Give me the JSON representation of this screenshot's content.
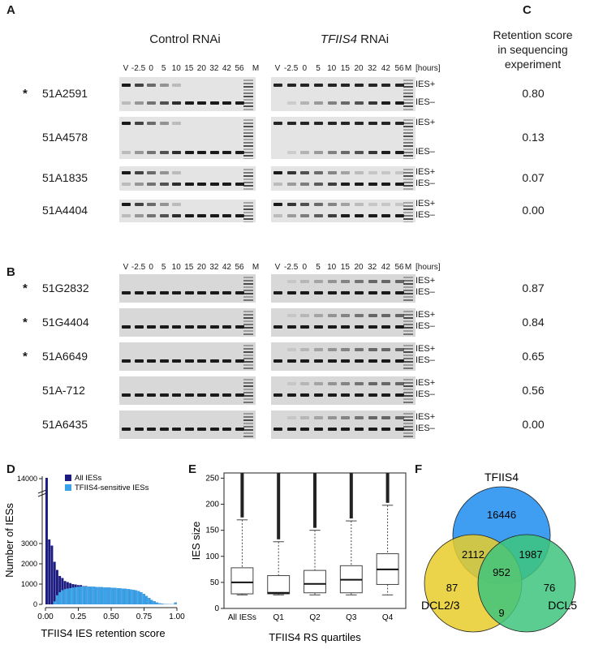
{
  "panels": {
    "A": "A",
    "B": "B",
    "C": "C",
    "D": "D",
    "E": "E",
    "F": "F"
  },
  "col_titles": {
    "control": "Control RNAi",
    "tfiis4_italic": "TFIIS4",
    "tfiis4_suffix": " RNAi"
  },
  "retention_title": [
    "Retention score",
    "in sequencing",
    "experiment"
  ],
  "lanes": [
    "V",
    "-2.5",
    "0",
    "5",
    "10",
    "15",
    "20",
    "32",
    "42",
    "56"
  ],
  "marker_label": "M",
  "hours_label": "[hours]",
  "ies_plus": "IES+",
  "ies_minus": "IES–",
  "panel_a_rows": [
    {
      "name": "51A2591",
      "star": "*",
      "score": "0.80"
    },
    {
      "name": "51A4578",
      "star": "",
      "score": "0.13"
    },
    {
      "name": "51A1835",
      "star": "",
      "score": "0.07"
    },
    {
      "name": "51A4404",
      "star": "",
      "score": "0.00"
    }
  ],
  "panel_b_rows": [
    {
      "name": "51G2832",
      "star": "*",
      "score": "0.87"
    },
    {
      "name": "51G4404",
      "star": "*",
      "score": "0.84"
    },
    {
      "name": "51A6649",
      "star": "*",
      "score": "0.65"
    },
    {
      "name": "51A-712",
      "star": "",
      "score": "0.56"
    },
    {
      "name": "51A6435",
      "star": "",
      "score": "0.00"
    }
  ],
  "chart_data": [
    {
      "type": "bar",
      "panel": "D",
      "title": "",
      "xlabel": "TFIIS4 IES retention score",
      "ylabel": "Number of IESs",
      "xlim": [
        0,
        1
      ],
      "x_ticks": [
        "0.00",
        "0.25",
        "0.50",
        "0.75",
        "1.00"
      ],
      "y_ticks_lower": [
        "0",
        "1000",
        "2000",
        "3000"
      ],
      "y_ticks_upper": [
        "14000"
      ],
      "legend": "top-right",
      "x": [
        0.01,
        0.03,
        0.05,
        0.07,
        0.09,
        0.11,
        0.13,
        0.15,
        0.17,
        0.19,
        0.21,
        0.23,
        0.25,
        0.27,
        0.29,
        0.31,
        0.33,
        0.35,
        0.37,
        0.39,
        0.41,
        0.43,
        0.45,
        0.47,
        0.49,
        0.51,
        0.53,
        0.55,
        0.57,
        0.59,
        0.61,
        0.63,
        0.65,
        0.67,
        0.69,
        0.71,
        0.73,
        0.75,
        0.77,
        0.79,
        0.81,
        0.83,
        0.85,
        0.87,
        0.89,
        0.91,
        0.93,
        0.95,
        0.97,
        0.99
      ],
      "series": [
        {
          "name": "All IESs",
          "color": "#1c1c80",
          "values": [
            14200,
            3200,
            2900,
            2100,
            1700,
            1400,
            1300,
            1150,
            1100,
            1050,
            1000,
            980,
            950,
            950,
            900,
            900,
            880,
            880,
            870,
            860,
            850,
            850,
            840,
            830,
            830,
            820,
            820,
            800,
            790,
            780,
            770,
            760,
            740,
            720,
            700,
            660,
            600,
            520,
            420,
            320,
            220,
            150,
            90,
            50,
            30,
            15,
            10,
            8,
            6,
            90
          ]
        },
        {
          "name": "TFIIS4-sensitive IESs",
          "color": "#38a3e8",
          "values": [
            0,
            0,
            0,
            150,
            450,
            600,
            700,
            750,
            780,
            800,
            830,
            850,
            870,
            880,
            880,
            880,
            880,
            880,
            870,
            860,
            850,
            850,
            840,
            830,
            830,
            820,
            820,
            800,
            790,
            780,
            770,
            760,
            740,
            720,
            700,
            660,
            600,
            520,
            420,
            320,
            220,
            150,
            90,
            50,
            30,
            15,
            10,
            8,
            6,
            90
          ]
        }
      ]
    },
    {
      "type": "box",
      "panel": "E",
      "title": "",
      "xlabel": "TFIIS4 RS quartiles",
      "ylabel": "IES size",
      "ylim": [
        0,
        260
      ],
      "y_ticks": [
        "0",
        "50",
        "100",
        "150",
        "200",
        "250"
      ],
      "categories": [
        "All IESs",
        "Q1",
        "Q2",
        "Q3",
        "Q4"
      ],
      "boxes": [
        {
          "min": 26,
          "q1": 28,
          "median": 50,
          "q3": 78,
          "max": 170
        },
        {
          "min": 26,
          "q1": 28,
          "median": 30,
          "q3": 63,
          "max": 128
        },
        {
          "min": 26,
          "q1": 30,
          "median": 47,
          "q3": 73,
          "max": 150
        },
        {
          "min": 26,
          "q1": 30,
          "median": 55,
          "q3": 82,
          "max": 168
        },
        {
          "min": 26,
          "q1": 46,
          "median": 75,
          "q3": 105,
          "max": 198
        }
      ]
    }
  ],
  "venn": {
    "labels": {
      "tfiis4": "TFIIS4",
      "dcl23": "DCL2/3",
      "dcl5": "DCL5"
    },
    "colors": {
      "tfiis4": "#1d8df0",
      "dcl23": "#e8cc2a",
      "dcl5": "#3ec47c"
    },
    "counts": {
      "tfiis4_only": "16446",
      "tfiis4_dcl23": "2112",
      "tfiis4_dcl5": "1987",
      "all_three": "952",
      "dcl23_only": "87",
      "dcl5_only": "76",
      "dcl23_dcl5": "9"
    }
  }
}
